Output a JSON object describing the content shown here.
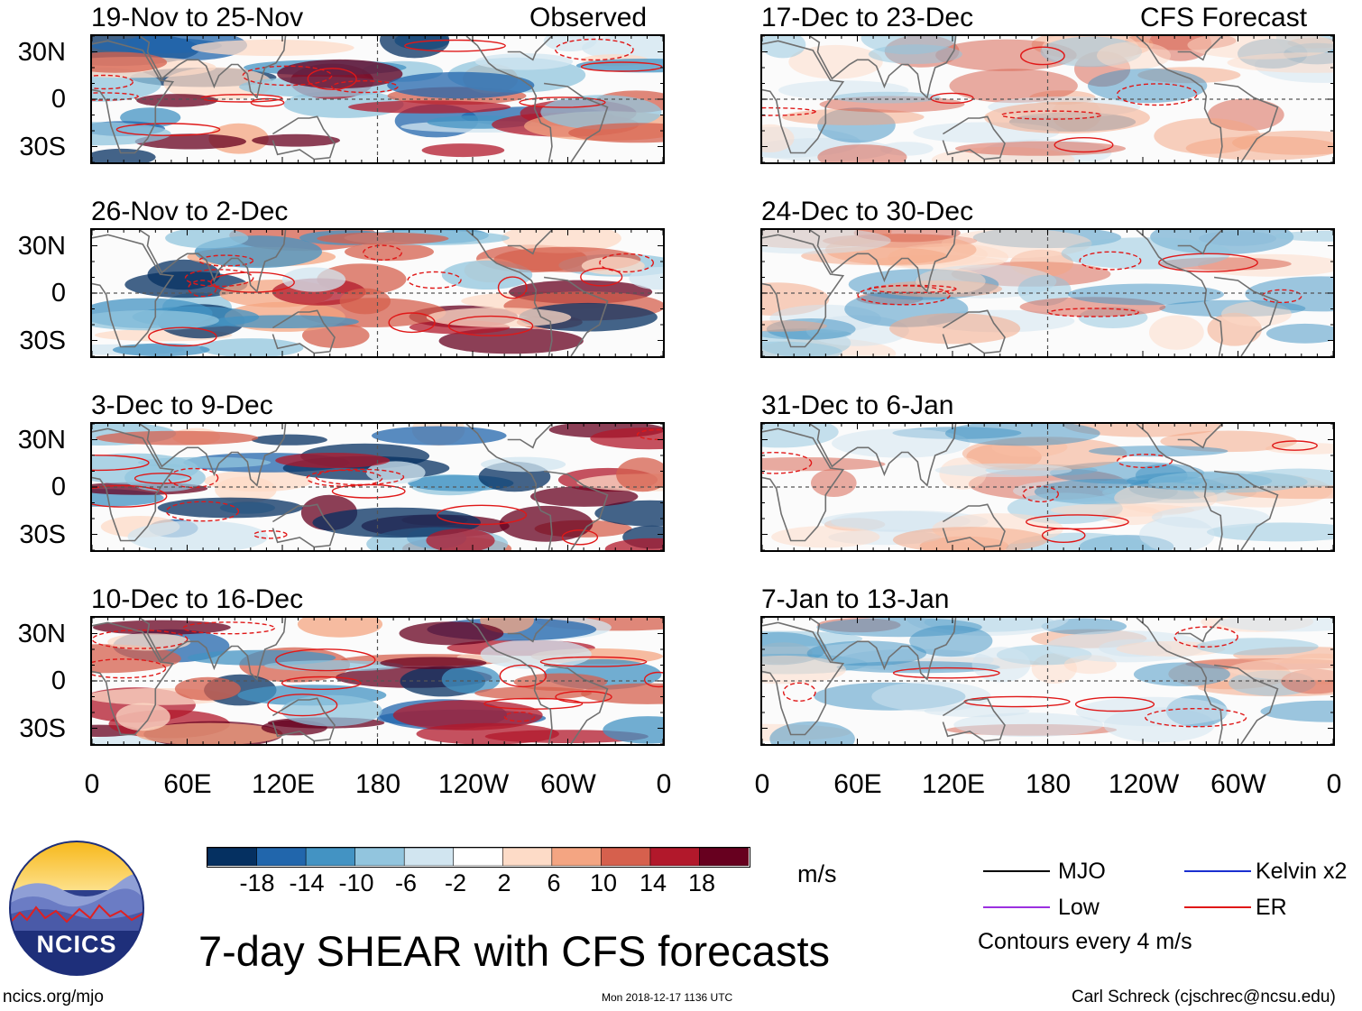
{
  "header": {
    "left_tag": "Observed",
    "right_tag": "CFS Forecast"
  },
  "panels_left": [
    {
      "title": "19-Nov to 25-Nov"
    },
    {
      "title": "26-Nov to 2-Dec"
    },
    {
      "title": "3-Dec to 9-Dec"
    },
    {
      "title": "10-Dec to 16-Dec"
    }
  ],
  "panels_right": [
    {
      "title": "17-Dec to 23-Dec"
    },
    {
      "title": "24-Dec to 30-Dec"
    },
    {
      "title": "31-Dec to 6-Jan"
    },
    {
      "title": "7-Jan to 13-Jan"
    }
  ],
  "chart_data": {
    "type": "heatmap",
    "variable": "7-day SHEAR anomaly",
    "units": "m/s",
    "y_ticks": [
      "30N",
      "0",
      "30S"
    ],
    "x_ticks": [
      "0",
      "60E",
      "120E",
      "180",
      "120W",
      "60W",
      "0"
    ],
    "colorbar": {
      "labels": [
        "-18",
        "-14",
        "-10",
        "-6",
        "-2",
        "2",
        "6",
        "10",
        "14",
        "18"
      ],
      "colors": [
        "#053061",
        "#2166ac",
        "#4393c3",
        "#92c5de",
        "#d1e5f0",
        "#ffffff",
        "#fddbc7",
        "#f4a582",
        "#d6604d",
        "#b2182b",
        "#67001f"
      ],
      "units": "m/s"
    },
    "legend": [
      {
        "label": "MJO",
        "color": "#000000"
      },
      {
        "label": "Kelvin x2",
        "color": "#1a2fd0"
      },
      {
        "label": "Low",
        "color": "#9b30e0"
      },
      {
        "label": "ER",
        "color": "#e01818"
      }
    ],
    "contour_note": "Contours every 4 m/s"
  },
  "footer": {
    "title": "7-day SHEAR with CFS forecasts",
    "url": "ncics.org/mjo",
    "timestamp": "Mon 2018-12-17 1136 UTC",
    "author": "Carl Schreck (cjschrec@ncsu.edu)",
    "logo_text": "NCICS"
  }
}
